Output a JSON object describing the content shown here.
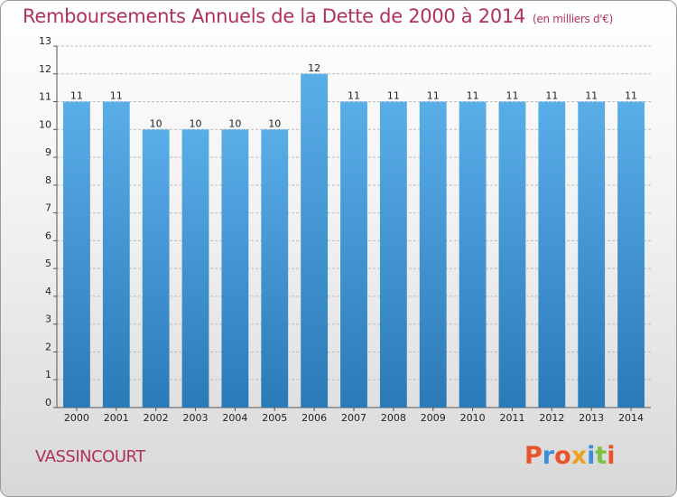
{
  "header": {
    "title": "Remboursements Annuels de la Dette de 2000 à 2014",
    "subtitle": "(en milliers d'€)"
  },
  "footer": {
    "commune": "VASSINCOURT",
    "logo_text": "Proxiti"
  },
  "colors": {
    "title": "#b03060",
    "bar_top": "#5aaee8",
    "bar_bottom": "#2a7ab8",
    "logo_letters": [
      "#e8532a",
      "#3a8fd8",
      "#e8532a",
      "#f0a020",
      "#3a8fd8",
      "#7cc242",
      "#e8532a"
    ]
  },
  "chart_data": {
    "type": "bar",
    "categories": [
      "2000",
      "2001",
      "2002",
      "2003",
      "2004",
      "2005",
      "2006",
      "2007",
      "2008",
      "2009",
      "2010",
      "2011",
      "2012",
      "2013",
      "2014"
    ],
    "values": [
      11,
      11,
      10,
      10,
      10,
      10,
      12,
      11,
      11,
      11,
      11,
      11,
      11,
      11,
      11
    ],
    "data_labels": [
      "11",
      "11",
      "10",
      "10",
      "10",
      "10",
      "12",
      "11",
      "11",
      "11",
      "11",
      "11",
      "11",
      "11",
      "11"
    ],
    "yticks": [
      "0",
      "1",
      "2",
      "3",
      "4",
      "5",
      "6",
      "7",
      "8",
      "9",
      "10",
      "11",
      "12",
      "13"
    ],
    "ylim": [
      0,
      13
    ],
    "title": "Remboursements Annuels de la Dette de 2000 à 2014",
    "xlabel": "",
    "ylabel": "",
    "grid": true
  }
}
